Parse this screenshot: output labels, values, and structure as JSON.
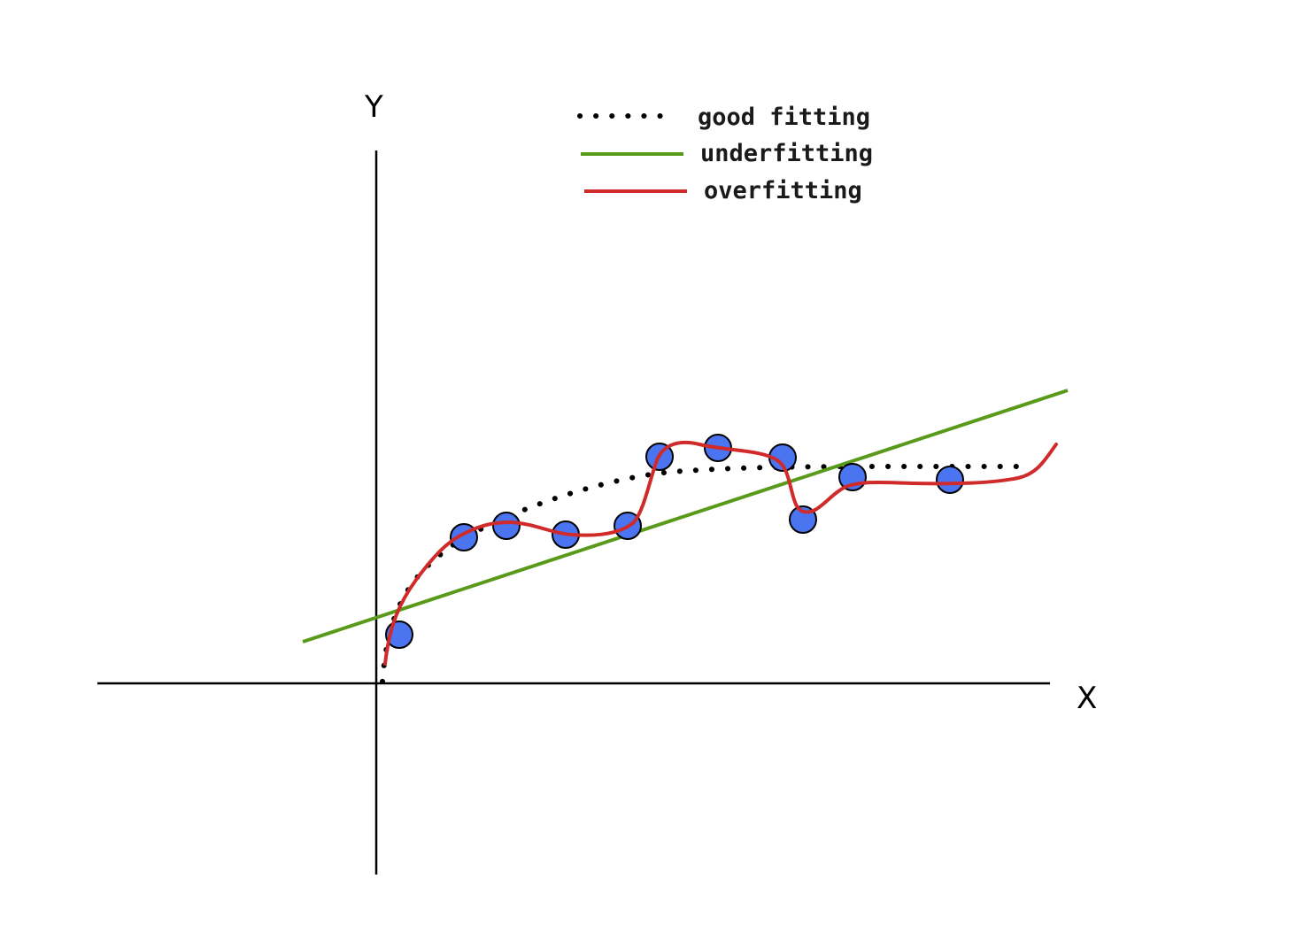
{
  "axes": {
    "x_label": "X",
    "y_label": "Y"
  },
  "legend": [
    {
      "key": "good",
      "label": "good fitting",
      "style": "dotted",
      "color": "#000000"
    },
    {
      "key": "under",
      "label": "underfitting",
      "style": "solid",
      "color": "#5a9a1a"
    },
    {
      "key": "over",
      "label": "overfitting",
      "style": "solid",
      "color": "#d02a2a"
    }
  ],
  "colors": {
    "axis": "#000000",
    "point_fill": "#4a74f0",
    "point_stroke": "#000000"
  }
}
